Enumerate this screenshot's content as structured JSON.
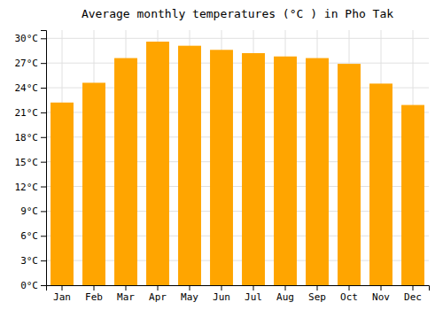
{
  "chart_data": {
    "type": "bar",
    "title": "Average monthly temperatures (°C ) in Pho Tak",
    "categories": [
      "Jan",
      "Feb",
      "Mar",
      "Apr",
      "May",
      "Jun",
      "Jul",
      "Aug",
      "Sep",
      "Oct",
      "Nov",
      "Dec"
    ],
    "values": [
      22.2,
      24.6,
      27.6,
      29.6,
      29.1,
      28.6,
      28.2,
      27.8,
      27.6,
      26.9,
      24.5,
      21.9
    ],
    "color": "#FFA500",
    "ylim": [
      0,
      31
    ],
    "yticks": [
      {
        "value": 0,
        "label": "0°C"
      },
      {
        "value": 3,
        "label": "3°C"
      },
      {
        "value": 6,
        "label": "6°C"
      },
      {
        "value": 9,
        "label": "9°C"
      },
      {
        "value": 12,
        "label": "12°C"
      },
      {
        "value": 15,
        "label": "15°C"
      },
      {
        "value": 18,
        "label": "18°C"
      },
      {
        "value": 21,
        "label": "21°C"
      },
      {
        "value": 24,
        "label": "24°C"
      },
      {
        "value": 27,
        "label": "27°C"
      },
      {
        "value": 30,
        "label": "30°C"
      }
    ],
    "grid": true
  }
}
